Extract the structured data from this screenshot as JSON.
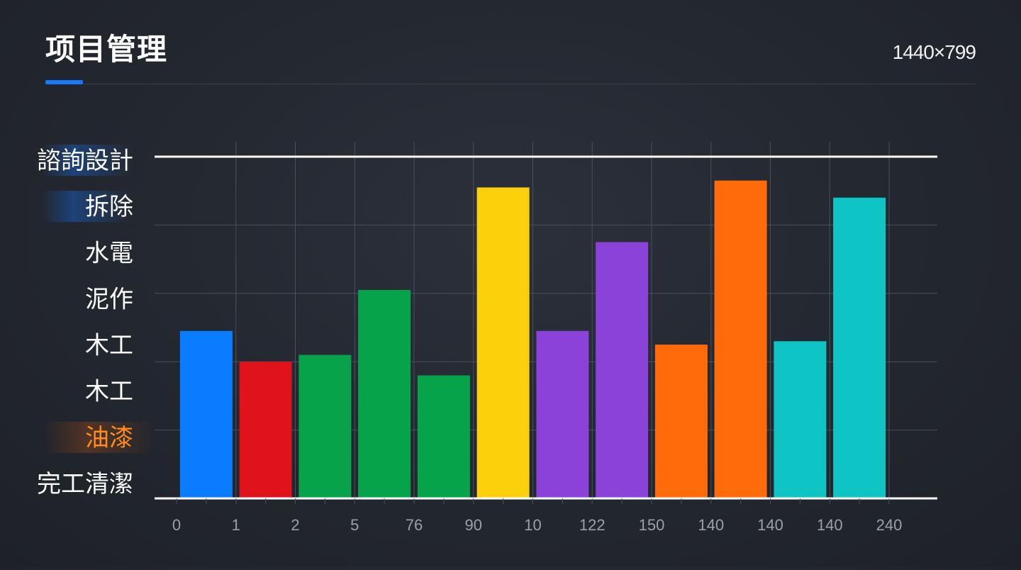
{
  "header": {
    "title": "项目管理",
    "size_label": "1440×799"
  },
  "chart_data": {
    "type": "bar",
    "title": "",
    "xlabel": "",
    "ylabel": "",
    "grid": true,
    "ylim": [
      0,
      100
    ],
    "y_tick_labels": [
      "諮詢設計",
      "拆除",
      "水電",
      "泥作",
      "木工",
      "木工",
      "油漆",
      "完工清潔"
    ],
    "x_tick_labels": [
      "0",
      "1",
      "2",
      "5",
      "76",
      "90",
      "10",
      "122",
      "150",
      "140",
      "140",
      "140",
      "240"
    ],
    "values": [
      49,
      40,
      42,
      61,
      36,
      91,
      49,
      75,
      45,
      93,
      46,
      88
    ],
    "colors": [
      "#0a7cff",
      "#e0121c",
      "#07a34a",
      "#07a34a",
      "#07a34a",
      "#fdd00c",
      "#8b42d9",
      "#8b42d9",
      "#ff6a0a",
      "#ff6a0a",
      "#0fc4c4",
      "#0fc4c4"
    ],
    "highlight_label_color": "#ff8a1f",
    "axis_color": "#ffffff",
    "grid_color": "#4a505c",
    "tick_text_color": "#9aa0aa"
  }
}
